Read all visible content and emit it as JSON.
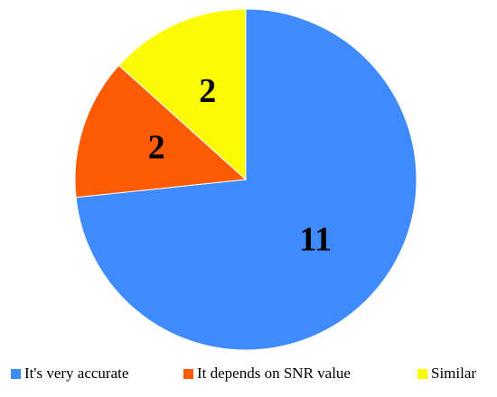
{
  "chart_data": {
    "type": "pie",
    "categories": [
      "It's very accurate",
      "It depends on SNR value",
      "Similar"
    ],
    "values": [
      11,
      2,
      2
    ],
    "colors": [
      "#3f8bfd",
      "#fd5a04",
      "#fdfb04"
    ]
  }
}
